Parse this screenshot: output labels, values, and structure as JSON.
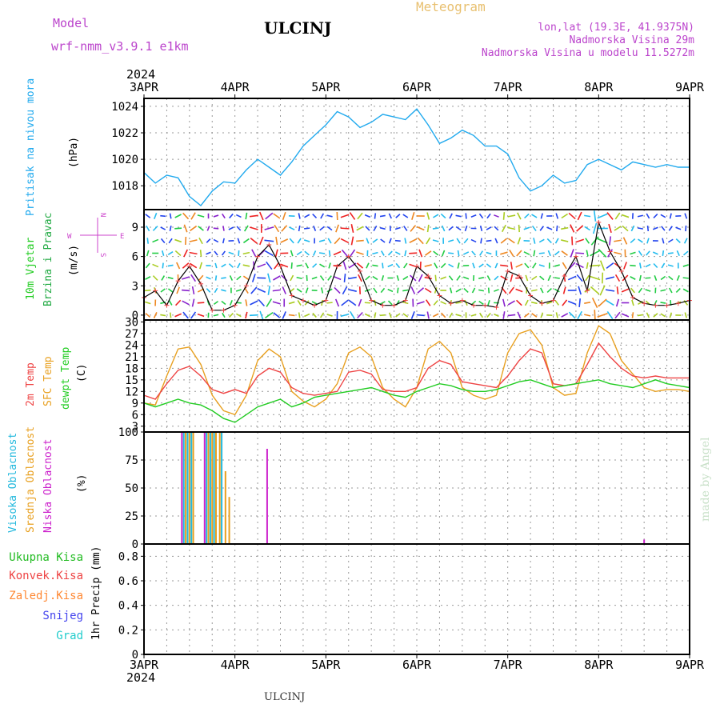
{
  "header": {
    "model_label": "Model",
    "model_name": "wrf-nmm_v3.9.1  e1km",
    "station": "ULCINJ",
    "chart_title": "Meteogram",
    "lonlat": "lon,lat (19.3E, 41.9375N)",
    "elevation": "Nadmorska Visina 29m",
    "model_elevation": "Nadmorska Visina u modelu 11.5272m"
  },
  "footer": {
    "station": "ULCINJ",
    "credit": "made by Angel"
  },
  "time_axis": {
    "year": "2024",
    "labels": [
      "3APR",
      "4APR",
      "5APR",
      "6APR",
      "7APR",
      "8APR",
      "9APR"
    ]
  },
  "colors": {
    "pressure": "#22aaee",
    "wind_label": "#22cc22",
    "wind_speed_label": "#22aa44",
    "t2m": "#ee4444",
    "sfc": "#e8a020",
    "dewpt": "#22cc22",
    "high_cloud": "#22b8dd",
    "mid_cloud": "#e8a020",
    "low_cloud": "#cc22cc",
    "compass": "#cc44cc",
    "total_precip": "#22bb22",
    "conv_precip": "#ee4444",
    "frozen_precip": "#ff8833",
    "snow": "#4444ee",
    "hail": "#22cccc",
    "title_meteogram": "#e8c070",
    "header_purple": "#bb44cc"
  },
  "panels": {
    "pressure": {
      "label": "Pritisak na nivou mora",
      "unit": "(hPa)",
      "ticks": [
        "1018",
        "1020",
        "1022",
        "1024"
      ]
    },
    "wind": {
      "label_line1": "10m Vjetar",
      "label_line2": "Brzina i Pravac",
      "unit": "(m/s)",
      "ticks": [
        "0",
        "3",
        "6",
        "9"
      ],
      "compass": {
        "n": "N",
        "s": "S",
        "e": "E",
        "w": "W"
      }
    },
    "temp": {
      "label_2m": "2m Temp",
      "label_sfc": "SFC Temp",
      "label_dewpt": "dewpt Temp",
      "unit": "(C)",
      "ticks": [
        "3",
        "6",
        "9",
        "12",
        "15",
        "18",
        "21",
        "24",
        "27",
        "30"
      ]
    },
    "cloud": {
      "label_high": "Visoka Oblacnost",
      "label_mid": "Srednja Oblacnost",
      "label_low": "Niska Oblacnost",
      "unit": "(%)",
      "ticks": [
        "0",
        "25",
        "50",
        "75",
        "100"
      ]
    },
    "precip": {
      "label_total": "Ukupna Kisa",
      "label_conv": "Konvek.Kisa",
      "label_frozen": "Zaledj.Kisa",
      "label_snow": "Snijeg",
      "label_hail": "Grad",
      "unit": "1hr Precip (mm)",
      "ticks": [
        "0",
        "0.2",
        "0.4",
        "0.6",
        "0.8"
      ]
    }
  },
  "chart_data": [
    {
      "type": "line",
      "title": "",
      "xlabel": "",
      "ylabel": "(hPa)",
      "ylim": [
        1016.2,
        1024.6
      ],
      "x_hours": [
        0,
        3,
        6,
        9,
        12,
        15,
        18,
        21,
        24,
        27,
        30,
        33,
        36,
        39,
        42,
        45,
        48,
        51,
        54,
        57,
        60,
        63,
        66,
        69,
        72,
        75,
        78,
        81,
        84,
        87,
        90,
        93,
        96,
        99,
        102,
        105,
        108,
        111,
        114,
        117,
        120,
        123,
        126,
        129,
        132,
        135,
        138,
        141,
        144
      ],
      "series": [
        {
          "name": "Pritisak na nivou mora",
          "values": [
            1019.0,
            1018.2,
            1018.8,
            1018.6,
            1017.2,
            1016.5,
            1017.6,
            1018.3,
            1018.2,
            1019.2,
            1020.0,
            1019.4,
            1018.8,
            1019.8,
            1021.0,
            1021.8,
            1022.6,
            1023.6,
            1023.2,
            1022.4,
            1022.8,
            1023.4,
            1023.2,
            1023.0,
            1023.8,
            1022.6,
            1021.2,
            1021.6,
            1022.2,
            1021.8,
            1021.0,
            1021.0,
            1020.4,
            1018.6,
            1017.6,
            1018.0,
            1018.8,
            1018.2,
            1018.4,
            1019.6,
            1020.0,
            1019.6,
            1019.2,
            1019.8,
            1019.6,
            1019.4,
            1019.6,
            1019.4,
            1019.4
          ]
        }
      ]
    },
    {
      "type": "line",
      "title": "",
      "xlabel": "",
      "ylabel": "(m/s)",
      "ylim": [
        -0.5,
        10.8
      ],
      "x_hours": [
        0,
        3,
        6,
        9,
        12,
        15,
        18,
        21,
        24,
        27,
        30,
        33,
        36,
        39,
        42,
        45,
        48,
        51,
        54,
        57,
        60,
        63,
        66,
        69,
        72,
        75,
        78,
        81,
        84,
        87,
        90,
        93,
        96,
        99,
        102,
        105,
        108,
        111,
        114,
        117,
        120,
        123,
        126,
        129,
        132,
        135,
        138,
        141,
        144
      ],
      "series": [
        {
          "name": "10m Vjetar",
          "values": [
            1.8,
            2.5,
            1.0,
            3.5,
            5.0,
            3.2,
            0.5,
            0.5,
            1.0,
            3.0,
            6.0,
            7.2,
            5.0,
            2.0,
            1.5,
            1.0,
            1.5,
            5.0,
            6.0,
            4.5,
            1.5,
            1.0,
            1.0,
            1.5,
            5.0,
            4.0,
            2.0,
            1.2,
            1.5,
            1.0,
            1.0,
            0.8,
            4.5,
            4.0,
            2.0,
            1.2,
            1.5,
            4.0,
            6.0,
            2.5,
            9.5,
            6.5,
            4.5,
            1.8,
            1.2,
            1.0,
            1.0,
            1.2,
            1.5
          ]
        }
      ]
    },
    {
      "type": "line",
      "title": "",
      "xlabel": "",
      "ylabel": "(C)",
      "ylim": [
        1.5,
        30.5
      ],
      "x_hours": [
        0,
        3,
        6,
        9,
        12,
        15,
        18,
        21,
        24,
        27,
        30,
        33,
        36,
        39,
        42,
        45,
        48,
        51,
        54,
        57,
        60,
        63,
        66,
        69,
        72,
        75,
        78,
        81,
        84,
        87,
        90,
        93,
        96,
        99,
        102,
        105,
        108,
        111,
        114,
        117,
        120,
        123,
        126,
        129,
        132,
        135,
        138,
        141,
        144
      ],
      "series": [
        {
          "name": "2m Temp",
          "values": [
            11.0,
            10.0,
            14.0,
            17.5,
            18.5,
            16.0,
            12.5,
            11.5,
            12.5,
            11.5,
            16.0,
            18.0,
            17.0,
            13.0,
            11.5,
            11.0,
            11.5,
            12.0,
            17.0,
            17.5,
            16.5,
            12.5,
            12.0,
            12.0,
            13.0,
            18.0,
            20.0,
            19.0,
            14.5,
            14.0,
            13.5,
            13.0,
            16.0,
            20.0,
            23.0,
            22.0,
            14.0,
            13.5,
            14.0,
            19.0,
            24.5,
            21.0,
            18.0,
            16.0,
            15.5,
            16.0,
            15.5,
            15.5,
            15.5
          ]
        },
        {
          "name": "SFC Temp",
          "values": [
            9.0,
            8.5,
            16.0,
            23.0,
            23.5,
            19.0,
            11.0,
            7.0,
            6.0,
            11.0,
            20.0,
            23.0,
            21.0,
            12.0,
            9.5,
            8.0,
            10.0,
            14.0,
            22.0,
            23.5,
            21.0,
            13.0,
            10.0,
            8.0,
            13.0,
            23.0,
            25.0,
            22.0,
            13.0,
            11.0,
            10.0,
            11.0,
            22.0,
            27.0,
            28.0,
            24.0,
            13.0,
            11.0,
            11.5,
            22.0,
            29.0,
            27.0,
            20.0,
            16.5,
            13.0,
            12.0,
            12.5,
            12.5,
            12.0
          ]
        },
        {
          "name": "dewpt Temp",
          "values": [
            9.0,
            8.0,
            9.0,
            10.0,
            9.0,
            8.5,
            7.0,
            5.0,
            4.0,
            6.0,
            8.0,
            9.0,
            10.0,
            8.0,
            9.0,
            10.5,
            11.0,
            11.5,
            12.0,
            12.5,
            13.0,
            12.0,
            11.0,
            10.5,
            12.0,
            13.0,
            14.0,
            13.5,
            12.5,
            12.0,
            12.0,
            12.5,
            13.5,
            14.5,
            15.0,
            14.0,
            13.0,
            13.5,
            14.0,
            14.5,
            15.0,
            14.0,
            13.5,
            13.0,
            14.0,
            15.0,
            14.0,
            13.5,
            13.0
          ]
        }
      ]
    },
    {
      "type": "bar",
      "title": "",
      "xlabel": "",
      "ylabel": "(%)",
      "ylim": [
        0,
        100
      ],
      "series": [
        {
          "name": "Visoka Oblacnost",
          "x_hours": [
            10.5,
            11.5,
            12.5,
            16.5,
            17.5,
            18.5,
            20.5
          ],
          "values": [
            100,
            100,
            100,
            100,
            100,
            100,
            100
          ]
        },
        {
          "name": "Srednja Oblacnost",
          "x_hours": [
            11.0,
            12.0,
            13.0,
            17.0,
            18.0,
            19.0,
            20.0,
            21.5,
            22.5
          ],
          "values": [
            100,
            100,
            100,
            100,
            100,
            100,
            100,
            65,
            42
          ]
        },
        {
          "name": "Niska Oblacnost",
          "x_hours": [
            10.0,
            16.0,
            32.5,
            132.0
          ],
          "values": [
            100,
            100,
            85,
            4
          ]
        }
      ]
    },
    {
      "type": "bar",
      "title": "",
      "xlabel": "",
      "ylabel": "1hr Precip (mm)",
      "ylim": [
        0,
        0.9
      ],
      "series": [
        {
          "name": "Ukupna Kisa",
          "values": []
        },
        {
          "name": "Konvek.Kisa",
          "values": []
        },
        {
          "name": "Zaledj.Kisa",
          "values": []
        },
        {
          "name": "Snijeg",
          "values": []
        },
        {
          "name": "Grad",
          "values": []
        }
      ]
    }
  ]
}
